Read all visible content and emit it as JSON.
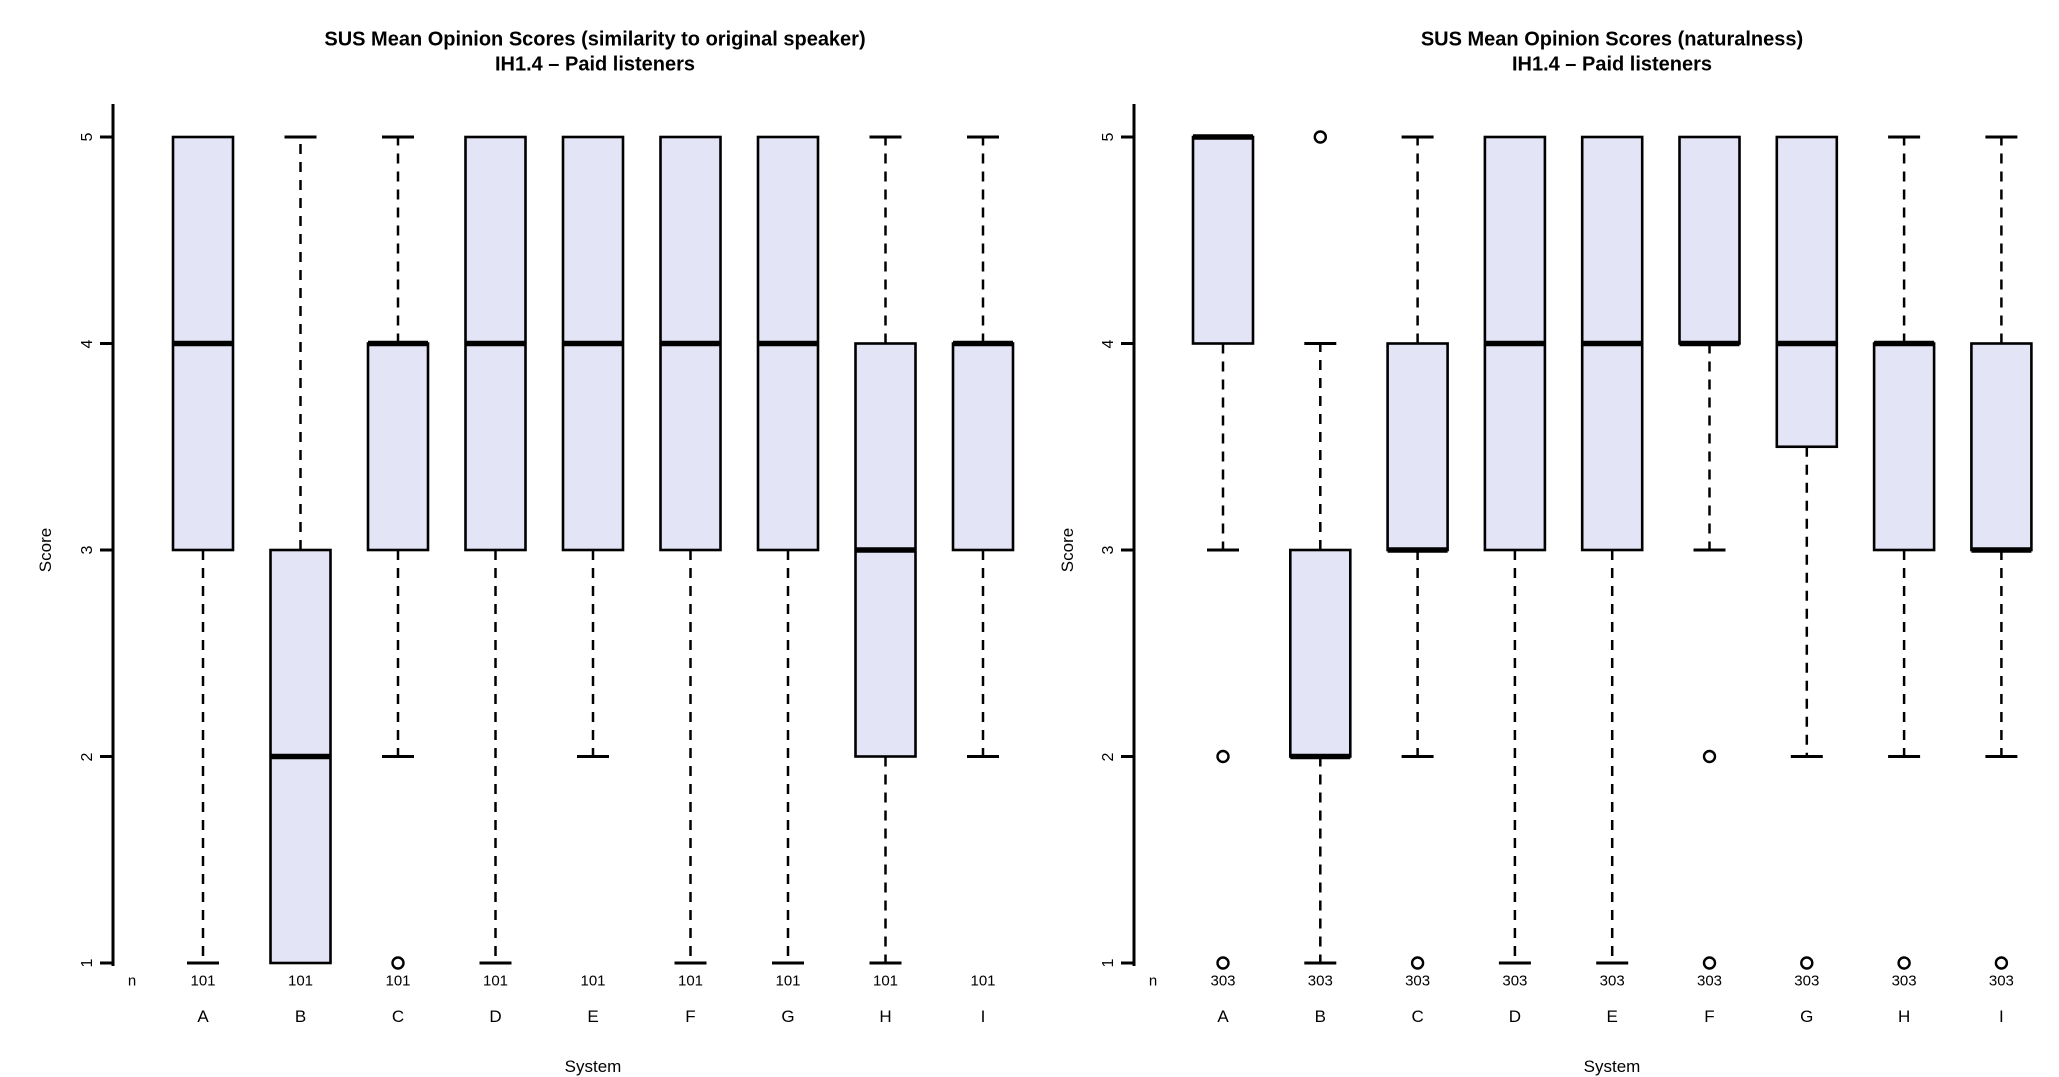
{
  "style": {
    "background": "#ffffff",
    "box_fill": "#e4e4f7",
    "line_color": "#000000",
    "text_color": "#000000"
  },
  "shared": {
    "y_axis_label": "Score",
    "x_axis_label": "System",
    "n_row_label": "n"
  },
  "chart_data": [
    {
      "type": "boxplot",
      "title": "SUS Mean Opinion Scores (similarity to original speaker)",
      "subtitle": "IH1.4 – Paid listeners",
      "xlabel": "System",
      "ylabel": "Score",
      "ylim": [
        1,
        5
      ],
      "yticks": [
        1,
        2,
        3,
        4,
        5
      ],
      "grid": false,
      "categories": [
        "A",
        "B",
        "C",
        "D",
        "E",
        "F",
        "G",
        "H",
        "I"
      ],
      "n": [
        101,
        101,
        101,
        101,
        101,
        101,
        101,
        101,
        101
      ],
      "boxes": [
        {
          "system": "A",
          "q1": 3,
          "median": 4,
          "q3": 5,
          "whisker_low": 1,
          "whisker_high": 5,
          "outliers": []
        },
        {
          "system": "B",
          "q1": 1,
          "median": 2,
          "q3": 3,
          "whisker_low": 1,
          "whisker_high": 5,
          "outliers": []
        },
        {
          "system": "C",
          "q1": 3,
          "median": 4,
          "q3": 4,
          "whisker_low": 2,
          "whisker_high": 5,
          "outliers": [
            1
          ]
        },
        {
          "system": "D",
          "q1": 3,
          "median": 4,
          "q3": 5,
          "whisker_low": 1,
          "whisker_high": 5,
          "outliers": []
        },
        {
          "system": "E",
          "q1": 3,
          "median": 4,
          "q3": 5,
          "whisker_low": 2,
          "whisker_high": 5,
          "outliers": []
        },
        {
          "system": "F",
          "q1": 3,
          "median": 4,
          "q3": 5,
          "whisker_low": 1,
          "whisker_high": 5,
          "outliers": []
        },
        {
          "system": "G",
          "q1": 3,
          "median": 4,
          "q3": 5,
          "whisker_low": 1,
          "whisker_high": 5,
          "outliers": []
        },
        {
          "system": "H",
          "q1": 2,
          "median": 3,
          "q3": 4,
          "whisker_low": 1,
          "whisker_high": 5,
          "outliers": []
        },
        {
          "system": "I",
          "q1": 3,
          "median": 4,
          "q3": 4,
          "whisker_low": 2,
          "whisker_high": 5,
          "outliers": []
        }
      ]
    },
    {
      "type": "boxplot",
      "title": "SUS Mean Opinion Scores (naturalness)",
      "subtitle": "IH1.4 – Paid listeners",
      "xlabel": "System",
      "ylabel": "Score",
      "ylim": [
        1,
        5
      ],
      "yticks": [
        1,
        2,
        3,
        4,
        5
      ],
      "grid": false,
      "categories": [
        "A",
        "B",
        "C",
        "D",
        "E",
        "F",
        "G",
        "H",
        "I"
      ],
      "n": [
        303,
        303,
        303,
        303,
        303,
        303,
        303,
        303,
        303
      ],
      "boxes": [
        {
          "system": "A",
          "q1": 4,
          "median": 5,
          "q3": 5,
          "whisker_low": 3,
          "whisker_high": 5,
          "outliers": [
            2,
            1
          ]
        },
        {
          "system": "B",
          "q1": 2,
          "median": 2,
          "q3": 3,
          "whisker_low": 1,
          "whisker_high": 4,
          "outliers": [
            5
          ]
        },
        {
          "system": "C",
          "q1": 3,
          "median": 3,
          "q3": 4,
          "whisker_low": 2,
          "whisker_high": 5,
          "outliers": [
            1
          ]
        },
        {
          "system": "D",
          "q1": 3,
          "median": 4,
          "q3": 5,
          "whisker_low": 1,
          "whisker_high": 5,
          "outliers": []
        },
        {
          "system": "E",
          "q1": 3,
          "median": 4,
          "q3": 5,
          "whisker_low": 1,
          "whisker_high": 5,
          "outliers": []
        },
        {
          "system": "F",
          "q1": 4,
          "median": 4,
          "q3": 5,
          "whisker_low": 3,
          "whisker_high": 5,
          "outliers": [
            2,
            1
          ]
        },
        {
          "system": "G",
          "q1": 3.5,
          "median": 4,
          "q3": 5,
          "whisker_low": 2,
          "whisker_high": 5,
          "outliers": [
            1
          ]
        },
        {
          "system": "H",
          "q1": 3,
          "median": 4,
          "q3": 4,
          "whisker_low": 2,
          "whisker_high": 5,
          "outliers": [
            1
          ]
        },
        {
          "system": "I",
          "q1": 3,
          "median": 3,
          "q3": 4,
          "whisker_low": 2,
          "whisker_high": 5,
          "outliers": [
            1
          ]
        }
      ]
    }
  ]
}
